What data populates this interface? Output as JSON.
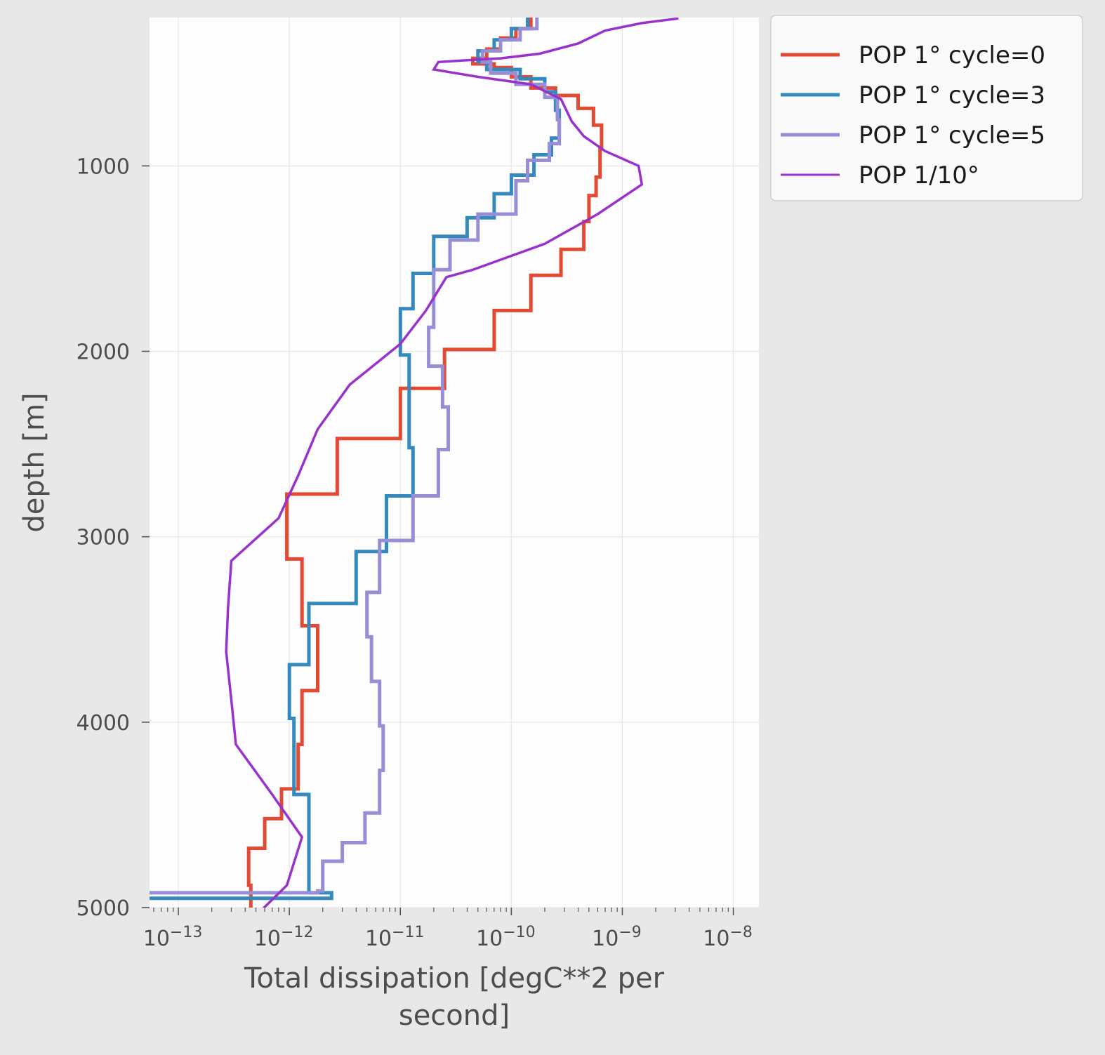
{
  "chart_data": {
    "type": "line",
    "title": "",
    "xlabel": [
      "Total dissipation [degC**2 per",
      "second]"
    ],
    "ylabel": "depth [m]",
    "xscale": "log",
    "xlim": [
      5.5e-14,
      1.7e-08
    ],
    "ylim": [
      5000,
      200
    ],
    "grid": true,
    "legend_placement": "outside-right-top",
    "x_ticks": [
      {
        "value": 1e-13,
        "base": "10",
        "exp": "−13"
      },
      {
        "value": 1e-12,
        "base": "10",
        "exp": "−12"
      },
      {
        "value": 1e-11,
        "base": "10",
        "exp": "−11"
      },
      {
        "value": 1e-10,
        "base": "10",
        "exp": "−10"
      },
      {
        "value": 1e-09,
        "base": "10",
        "exp": "−9"
      },
      {
        "value": 1e-08,
        "base": "10",
        "exp": "−8"
      }
    ],
    "y_ticks": [
      {
        "value": 1000,
        "label": "1000"
      },
      {
        "value": 2000,
        "label": "2000"
      },
      {
        "value": 3000,
        "label": "3000"
      },
      {
        "value": 4000,
        "label": "4000"
      },
      {
        "value": 5000,
        "label": "5000"
      }
    ],
    "series": [
      {
        "name": "POP 1° cycle=0",
        "color": "#e24a33",
        "style": "step",
        "points": [
          [
            1.5e-10,
            200
          ],
          [
            1.1e-10,
            260
          ],
          [
            8e-11,
            310
          ],
          [
            6e-11,
            370
          ],
          [
            4.5e-11,
            420
          ],
          [
            7e-11,
            450
          ],
          [
            1e-10,
            470
          ],
          [
            1.5e-10,
            520
          ],
          [
            2.5e-10,
            580
          ],
          [
            4e-10,
            620
          ],
          [
            5.5e-10,
            690
          ],
          [
            6.5e-10,
            780
          ],
          [
            6.3e-10,
            900
          ],
          [
            5.8e-10,
            1060
          ],
          [
            5e-10,
            1160
          ],
          [
            4.5e-10,
            1300
          ],
          [
            2.8e-10,
            1450
          ],
          [
            1.5e-10,
            1590
          ],
          [
            7e-11,
            1780
          ],
          [
            2.5e-11,
            1990
          ],
          [
            2.5e-11,
            2060
          ],
          [
            1e-11,
            2200
          ],
          [
            2.7e-12,
            2470
          ],
          [
            9.5e-13,
            2770
          ],
          [
            1.3e-12,
            3120
          ],
          [
            1.8e-12,
            3480
          ],
          [
            1.3e-12,
            3830
          ],
          [
            1.2e-12,
            4120
          ],
          [
            8.5e-13,
            4360
          ],
          [
            6e-13,
            4520
          ],
          [
            4.3e-13,
            4680
          ],
          [
            4.5e-13,
            4880
          ],
          [
            4.5e-13,
            5000
          ]
        ]
      },
      {
        "name": "POP 1° cycle=3",
        "color": "#348abd",
        "style": "step",
        "points": [
          [
            1.4e-10,
            200
          ],
          [
            1e-10,
            260
          ],
          [
            7e-11,
            320
          ],
          [
            5e-11,
            380
          ],
          [
            6e-11,
            440
          ],
          [
            1.2e-10,
            480
          ],
          [
            2e-10,
            530
          ],
          [
            2.5e-10,
            600
          ],
          [
            2.7e-10,
            700
          ],
          [
            2.3e-10,
            850
          ],
          [
            1.6e-10,
            940
          ],
          [
            1e-10,
            1050
          ],
          [
            7e-11,
            1150
          ],
          [
            4e-11,
            1280
          ],
          [
            2e-11,
            1380
          ],
          [
            1.3e-11,
            1580
          ],
          [
            1e-11,
            1770
          ],
          [
            1.2e-11,
            2020
          ],
          [
            1.3e-11,
            2520
          ],
          [
            7.5e-12,
            2780
          ],
          [
            4e-12,
            3080
          ],
          [
            1.5e-12,
            3360
          ],
          [
            1e-12,
            3690
          ],
          [
            1.1e-12,
            3980
          ],
          [
            1.5e-12,
            4390
          ],
          [
            2.4e-12,
            4920
          ],
          [
            5.5e-14,
            4950
          ]
        ]
      },
      {
        "name": "POP 1° cycle=5",
        "color": "#988ed5",
        "style": "step",
        "points": [
          [
            1.7e-10,
            200
          ],
          [
            1.2e-10,
            260
          ],
          [
            8e-11,
            320
          ],
          [
            5.5e-11,
            380
          ],
          [
            6.5e-11,
            440
          ],
          [
            1.1e-10,
            500
          ],
          [
            2e-10,
            560
          ],
          [
            2.6e-10,
            630
          ],
          [
            2.7e-10,
            750
          ],
          [
            2.2e-10,
            880
          ],
          [
            1.4e-10,
            970
          ],
          [
            1.1e-10,
            1080
          ],
          [
            5e-11,
            1260
          ],
          [
            2.8e-11,
            1400
          ],
          [
            2e-11,
            1560
          ],
          [
            1.8e-11,
            1870
          ],
          [
            2.4e-11,
            2080
          ],
          [
            2.7e-11,
            2300
          ],
          [
            2.2e-11,
            2530
          ],
          [
            1.3e-11,
            2780
          ],
          [
            6.5e-12,
            3020
          ],
          [
            5e-12,
            3300
          ],
          [
            5.5e-12,
            3540
          ],
          [
            6.5e-12,
            3780
          ],
          [
            7e-12,
            4020
          ],
          [
            6.5e-12,
            4260
          ],
          [
            4.8e-12,
            4490
          ],
          [
            3e-12,
            4650
          ],
          [
            2e-12,
            4750
          ],
          [
            1.8e-12,
            4910
          ],
          [
            5.5e-14,
            4920
          ]
        ]
      },
      {
        "name": "POP 1/10°",
        "color": "#9932cc",
        "style": "line",
        "points": [
          [
            3.2e-09,
            205
          ],
          [
            1.5e-09,
            230
          ],
          [
            7e-10,
            270
          ],
          [
            4e-10,
            340
          ],
          [
            1.8e-10,
            395
          ],
          [
            8e-11,
            420
          ],
          [
            4e-11,
            430
          ],
          [
            2.2e-11,
            440
          ],
          [
            2e-11,
            480
          ],
          [
            5e-11,
            520
          ],
          [
            1.5e-10,
            560
          ],
          [
            2.8e-10,
            640
          ],
          [
            3.5e-10,
            760
          ],
          [
            4.5e-10,
            840
          ],
          [
            7e-10,
            920
          ],
          [
            1.4e-09,
            1000
          ],
          [
            1.5e-09,
            1100
          ],
          [
            6e-10,
            1260
          ],
          [
            2e-10,
            1420
          ],
          [
            4.5e-11,
            1560
          ],
          [
            2.6e-11,
            1600
          ],
          [
            1.7e-11,
            1780
          ],
          [
            1e-11,
            1960
          ],
          [
            3.5e-12,
            2180
          ],
          [
            1.8e-12,
            2420
          ],
          [
            1.2e-12,
            2670
          ],
          [
            8e-13,
            2900
          ],
          [
            3e-13,
            3130
          ],
          [
            2.8e-13,
            3390
          ],
          [
            2.7e-13,
            3620
          ],
          [
            3e-13,
            3880
          ],
          [
            3.3e-13,
            4120
          ],
          [
            7e-13,
            4390
          ],
          [
            1.3e-12,
            4620
          ],
          [
            9.5e-13,
            4880
          ],
          [
            4e-13,
            5100
          ]
        ]
      }
    ]
  }
}
